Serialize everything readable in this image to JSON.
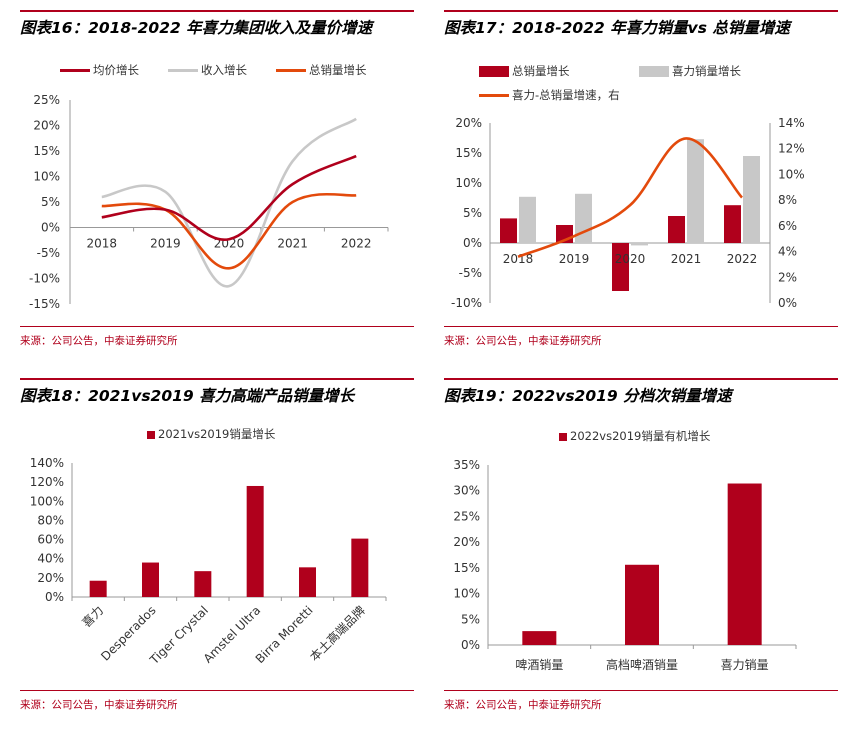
{
  "colors": {
    "crimson": "#b0001c",
    "gray": "#c8c8c8",
    "orange": "#e34a0c",
    "axis": "#999999"
  },
  "charts": [
    {
      "title": "图表16：2018-2022 年喜力集团收入及量价增速",
      "source": "来源：公司公告，中泰证券研究所",
      "chart_data": {
        "type": "line",
        "categories": [
          "2018",
          "2019",
          "2020",
          "2021",
          "2022"
        ],
        "series": [
          {
            "name": "均价增长",
            "values": [
              2.0,
              3.5,
              -2.3,
              8.5,
              14.0
            ]
          },
          {
            "name": "收入增长",
            "values": [
              6.0,
              7.0,
              -11.5,
              13.0,
              21.3
            ]
          },
          {
            "name": "总销量增长",
            "values": [
              4.2,
              3.5,
              -8.0,
              5.0,
              6.3
            ]
          }
        ],
        "y_ticks": [
          "25%",
          "20%",
          "15%",
          "10%",
          "5%",
          "0%",
          "-5%",
          "-10%",
          "-15%"
        ],
        "ylim": [
          -15,
          25
        ]
      }
    },
    {
      "title": "图表17：2018-2022 年喜力销量vs 总销量增速",
      "source": "来源：公司公告，中泰证券研究所",
      "chart_data": {
        "type": "bar",
        "categories": [
          "2018",
          "2019",
          "2020",
          "2021",
          "2022"
        ],
        "series": [
          {
            "name": "总销量增长",
            "values": [
              4.1,
              3.0,
              -8.0,
              4.5,
              6.3
            ]
          },
          {
            "name": "喜力销量增长",
            "values": [
              7.7,
              8.2,
              -0.4,
              17.3,
              14.5
            ]
          },
          {
            "name": "喜力-总销量增速，右",
            "values": [
              3.6,
              5.2,
              7.6,
              12.8,
              8.2
            ]
          }
        ],
        "y_ticks_left": [
          "20%",
          "15%",
          "10%",
          "5%",
          "0%",
          "-5%",
          "-10%"
        ],
        "y_ticks_right": [
          "14%",
          "12%",
          "10%",
          "8%",
          "6%",
          "4%",
          "2%",
          "0%"
        ],
        "ylim": [
          -10,
          20
        ],
        "ylim_right": [
          0,
          14
        ]
      }
    },
    {
      "title": "图表18：2021vs2019 喜力高端产品销量增长",
      "source": "来源：公司公告，中泰证券研究所",
      "chart_data": {
        "type": "bar",
        "categories": [
          "喜力",
          "Desperados",
          "Tiger Crystal",
          "Amstel Ultra",
          "Birra Moretti",
          "本土高端品牌"
        ],
        "series": [
          {
            "name": "2021vs2019销量增长",
            "values": [
              17,
              36,
              27,
              116,
              31,
              61
            ]
          }
        ],
        "y_ticks": [
          "140%",
          "120%",
          "100%",
          "80%",
          "60%",
          "40%",
          "20%",
          "0%"
        ],
        "ylim": [
          0,
          140
        ]
      }
    },
    {
      "title": "图表19：2022vs2019 分档次销量增速",
      "source": "来源：公司公告，中泰证券研究所",
      "chart_data": {
        "type": "bar",
        "categories": [
          "啤酒销量",
          "高档啤酒销量",
          "喜力销量"
        ],
        "series": [
          {
            "name": "2022vs2019销量有机增长",
            "values": [
              2.7,
              15.6,
              31.4
            ]
          }
        ],
        "y_ticks": [
          "35%",
          "30%",
          "25%",
          "20%",
          "15%",
          "10%",
          "5%",
          "0%"
        ],
        "ylim": [
          0,
          35
        ]
      }
    }
  ]
}
